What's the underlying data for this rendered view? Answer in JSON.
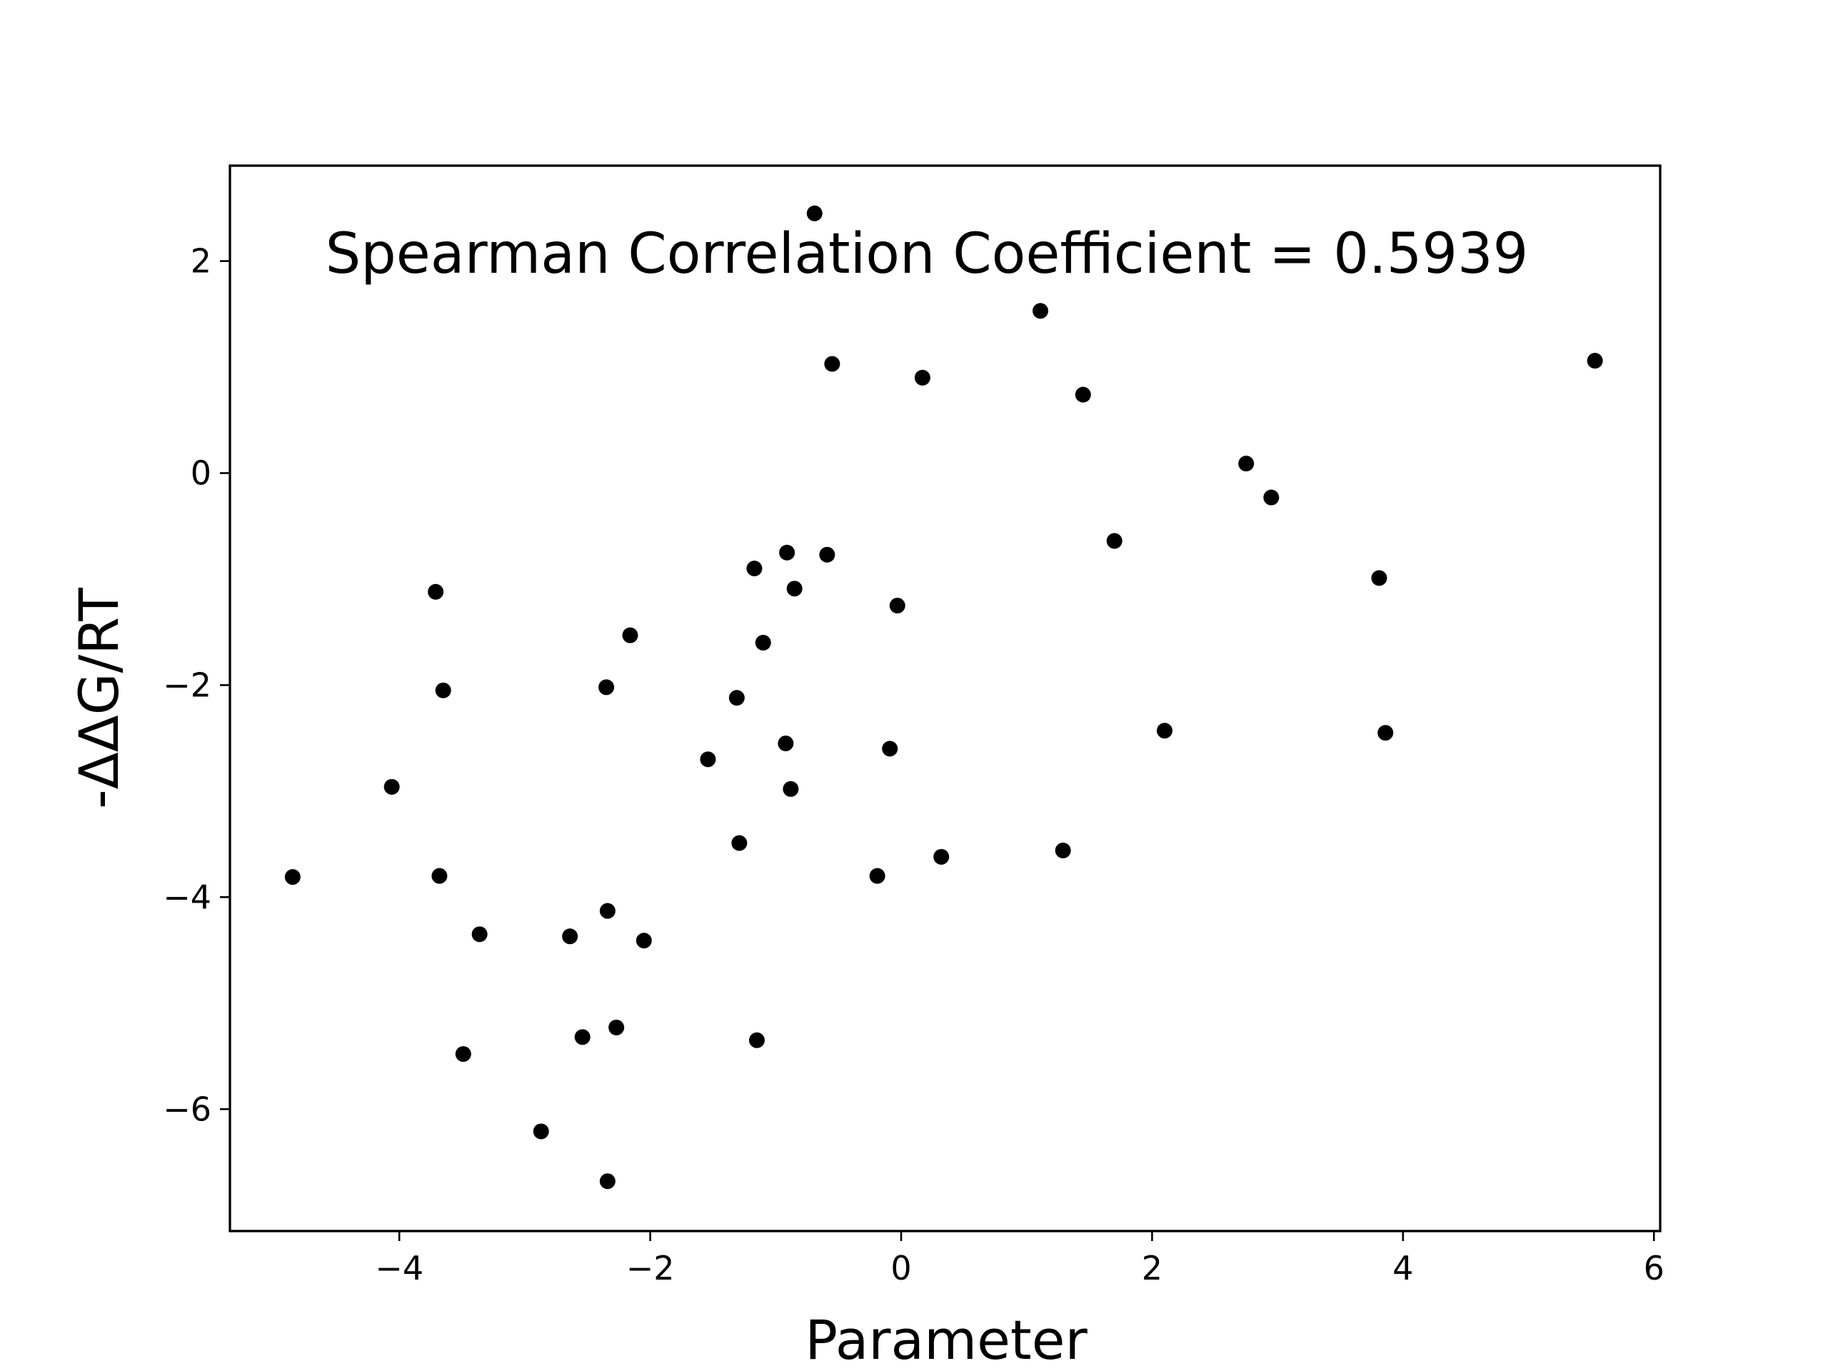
{
  "chart_data": {
    "type": "scatter",
    "title": "",
    "xlabel": "Parameter",
    "ylabel": "-ΔΔG/RT",
    "xlim": [
      -5.35,
      6.05
    ],
    "ylim": [
      -7.15,
      2.9
    ],
    "x_ticks": [
      -4,
      -2,
      0,
      2,
      4,
      6
    ],
    "x_tick_labels": [
      "−4",
      "−2",
      "0",
      "2",
      "4",
      "6"
    ],
    "y_ticks": [
      -6,
      -4,
      -2,
      0,
      2
    ],
    "y_tick_labels": [
      "−6",
      "−4",
      "−2",
      "0",
      "2"
    ],
    "grid": false,
    "legend": "none",
    "annotation": "Spearman Correlation Coefficient = 0.5939",
    "marker_color": "#000000",
    "series": [
      {
        "points": [
          [
            -0.69,
            2.45
          ],
          [
            1.11,
            1.53
          ],
          [
            -0.55,
            1.03
          ],
          [
            0.17,
            0.9
          ],
          [
            1.45,
            0.74
          ],
          [
            5.53,
            1.06
          ],
          [
            2.75,
            0.09
          ],
          [
            2.95,
            -0.23
          ],
          [
            1.7,
            -0.64
          ],
          [
            3.81,
            -0.99
          ],
          [
            -3.71,
            -1.12
          ],
          [
            -0.91,
            -0.75
          ],
          [
            -0.59,
            -0.77
          ],
          [
            -1.17,
            -0.9
          ],
          [
            -0.85,
            -1.09
          ],
          [
            -0.03,
            -1.25
          ],
          [
            -2.16,
            -1.53
          ],
          [
            -1.1,
            -1.6
          ],
          [
            -3.65,
            -2.05
          ],
          [
            -2.35,
            -2.02
          ],
          [
            -1.31,
            -2.12
          ],
          [
            2.1,
            -2.43
          ],
          [
            3.86,
            -2.45
          ],
          [
            -0.92,
            -2.55
          ],
          [
            -0.09,
            -2.6
          ],
          [
            -1.54,
            -2.7
          ],
          [
            -4.06,
            -2.96
          ],
          [
            -0.88,
            -2.98
          ],
          [
            -1.29,
            -3.49
          ],
          [
            1.29,
            -3.56
          ],
          [
            0.32,
            -3.62
          ],
          [
            -4.85,
            -3.81
          ],
          [
            -3.68,
            -3.8
          ],
          [
            -0.19,
            -3.8
          ],
          [
            -2.34,
            -4.13
          ],
          [
            -3.36,
            -4.35
          ],
          [
            -2.64,
            -4.37
          ],
          [
            -2.05,
            -4.41
          ],
          [
            -2.27,
            -5.23
          ],
          [
            -2.54,
            -5.32
          ],
          [
            -1.15,
            -5.35
          ],
          [
            -3.49,
            -5.48
          ],
          [
            -2.87,
            -6.21
          ],
          [
            -2.34,
            -6.68
          ]
        ]
      }
    ]
  }
}
